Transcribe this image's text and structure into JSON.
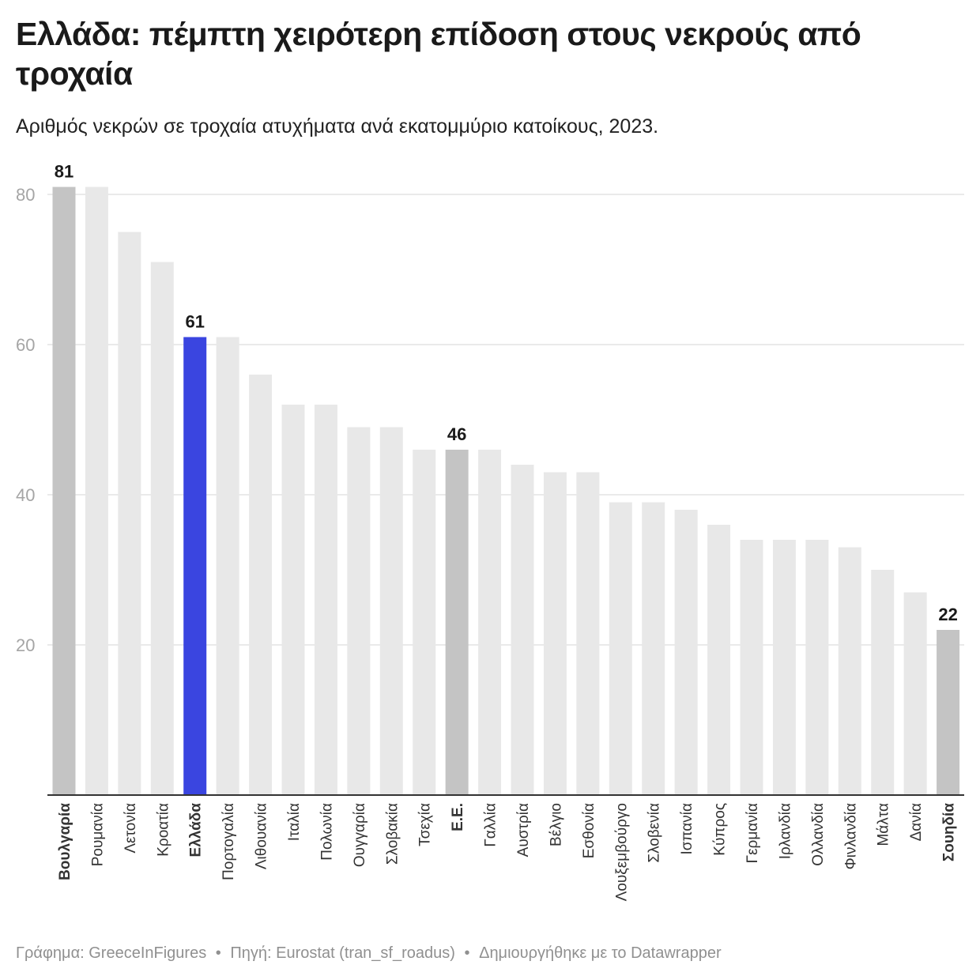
{
  "title": "Ελλάδα: πέμπτη χειρότερη επίδοση στους νεκρούς από τροχαία",
  "subtitle": "Αριθμός νεκρών σε τροχαία ατυχήματα ανά εκατομμύριο κατοίκους, 2023.",
  "footer": {
    "credit": "Γράφημα: GreeceInFigures",
    "source": "Πηγή: Eurostat (tran_sf_roadus)",
    "tool": "Δημιουργήθηκε με το Datawrapper",
    "separator": "•"
  },
  "colors": {
    "default_bar": "#e8e8e8",
    "highlight_gray": "#c4c4c4",
    "highlight_blue": "#3a45e0",
    "gridline": "#e3e3e3",
    "axis_tick": "#a5a5a5"
  },
  "chart_data": {
    "type": "bar",
    "title": "Ελλάδα: πέμπτη χειρότερη επίδοση στους νεκρούς από τροχαία",
    "subtitle": "Αριθμός νεκρών σε τροχαία ατυχήματα ανά εκατομμύριο κατοίκους, 2023.",
    "xlabel": "",
    "ylabel": "",
    "ylim": [
      0,
      80
    ],
    "yticks": [
      20,
      40,
      60,
      80
    ],
    "grid": true,
    "categories": [
      "Βουλγαρία",
      "Ρουμανία",
      "Λετονία",
      "Κροατία",
      "Ελλάδα",
      "Πορτογαλία",
      "Λιθουανία",
      "Ιταλία",
      "Πολωνία",
      "Ουγγαρία",
      "Σλοβακία",
      "Τσεχία",
      "Ε.Ε.",
      "Γαλλία",
      "Αυστρία",
      "Βέλγιο",
      "Εσθονία",
      "Λουξεμβούργο",
      "Σλοβενία",
      "Ισπανία",
      "Κύπρος",
      "Γερμανία",
      "Ιρλανδία",
      "Ολλανδία",
      "Φινλανδία",
      "Μάλτα",
      "Δανία",
      "Σουηδία"
    ],
    "values": [
      81,
      81,
      75,
      71,
      61,
      61,
      56,
      52,
      52,
      49,
      49,
      46,
      46,
      46,
      44,
      43,
      43,
      39,
      39,
      38,
      36,
      34,
      34,
      34,
      33,
      30,
      27,
      22
    ],
    "highlights": {
      "Βουλγαρία": "gray",
      "Ελλάδα": "blue",
      "Ε.Ε.": "gray",
      "Σουηδία": "gray"
    },
    "value_labels_shown_for": [
      "Βουλγαρία",
      "Ελλάδα",
      "Ε.Ε.",
      "Σουηδία"
    ]
  }
}
